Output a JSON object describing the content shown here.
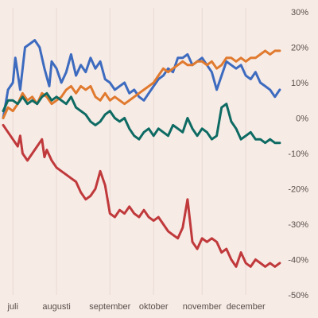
{
  "chart_data": {
    "type": "line",
    "title": "",
    "xlabel": "",
    "ylabel": "",
    "x_ticks": [
      "juli",
      "augusti",
      "september",
      "oktober",
      "november",
      "december"
    ],
    "x_tick_positions": [
      0.3,
      1.2,
      2.3,
      3.2,
      4.2,
      5.1
    ],
    "x_range": [
      0.1,
      5.9
    ],
    "y_ticks": [
      "30%",
      "20%",
      "10%",
      "0%",
      "-10%",
      "-20%",
      "-30%",
      "-40%",
      "-50%"
    ],
    "ylim": [
      -50,
      30
    ],
    "grid": "vertical",
    "legend": "none",
    "series": [
      {
        "color": "#3d6bbf",
        "points": [
          [
            0.1,
            0
          ],
          [
            0.2,
            8
          ],
          [
            0.3,
            10
          ],
          [
            0.35,
            17
          ],
          [
            0.45,
            8
          ],
          [
            0.55,
            20
          ],
          [
            0.65,
            21
          ],
          [
            0.75,
            22
          ],
          [
            0.85,
            20
          ],
          [
            0.95,
            14
          ],
          [
            1.05,
            9
          ],
          [
            1.1,
            16
          ],
          [
            1.2,
            14
          ],
          [
            1.3,
            10
          ],
          [
            1.4,
            13
          ],
          [
            1.5,
            18
          ],
          [
            1.6,
            12
          ],
          [
            1.7,
            15
          ],
          [
            1.8,
            13
          ],
          [
            1.9,
            17
          ],
          [
            2.0,
            14
          ],
          [
            2.1,
            16
          ],
          [
            2.2,
            11
          ],
          [
            2.3,
            10
          ],
          [
            2.4,
            8
          ],
          [
            2.5,
            9
          ],
          [
            2.6,
            10
          ],
          [
            2.7,
            7
          ],
          [
            2.8,
            8
          ],
          [
            2.9,
            6
          ],
          [
            3.0,
            5
          ],
          [
            3.1,
            7
          ],
          [
            3.2,
            9
          ],
          [
            3.3,
            11
          ],
          [
            3.4,
            12
          ],
          [
            3.5,
            14
          ],
          [
            3.6,
            13
          ],
          [
            3.7,
            17
          ],
          [
            3.8,
            17
          ],
          [
            3.9,
            18
          ],
          [
            4.0,
            15
          ],
          [
            4.1,
            16
          ],
          [
            4.2,
            17
          ],
          [
            4.3,
            15
          ],
          [
            4.4,
            13
          ],
          [
            4.5,
            8
          ],
          [
            4.6,
            12
          ],
          [
            4.7,
            16
          ],
          [
            4.8,
            15
          ],
          [
            4.9,
            14
          ],
          [
            5.0,
            15
          ],
          [
            5.1,
            12
          ],
          [
            5.2,
            11
          ],
          [
            5.3,
            13
          ],
          [
            5.4,
            10
          ],
          [
            5.5,
            9
          ],
          [
            5.6,
            8
          ],
          [
            5.7,
            6
          ],
          [
            5.8,
            8
          ]
        ]
      },
      {
        "color": "#e07a2e",
        "points": [
          [
            0.1,
            0
          ],
          [
            0.2,
            3
          ],
          [
            0.3,
            2
          ],
          [
            0.4,
            4
          ],
          [
            0.5,
            7
          ],
          [
            0.6,
            5
          ],
          [
            0.7,
            6
          ],
          [
            0.8,
            4
          ],
          [
            0.9,
            7
          ],
          [
            1.0,
            6
          ],
          [
            1.1,
            4
          ],
          [
            1.2,
            5
          ],
          [
            1.3,
            6
          ],
          [
            1.4,
            8
          ],
          [
            1.5,
            9
          ],
          [
            1.6,
            7
          ],
          [
            1.7,
            9
          ],
          [
            1.8,
            8
          ],
          [
            1.9,
            9
          ],
          [
            2.0,
            6
          ],
          [
            2.1,
            5
          ],
          [
            2.2,
            7
          ],
          [
            2.3,
            5
          ],
          [
            2.4,
            6
          ],
          [
            2.5,
            5
          ],
          [
            2.6,
            4
          ],
          [
            2.7,
            5
          ],
          [
            2.8,
            6
          ],
          [
            2.9,
            7
          ],
          [
            3.0,
            8
          ],
          [
            3.1,
            9
          ],
          [
            3.2,
            10
          ],
          [
            3.3,
            12
          ],
          [
            3.4,
            14
          ],
          [
            3.5,
            13
          ],
          [
            3.6,
            14
          ],
          [
            3.7,
            15
          ],
          [
            3.8,
            16
          ],
          [
            3.9,
            15
          ],
          [
            4.0,
            15
          ],
          [
            4.1,
            16
          ],
          [
            4.2,
            16
          ],
          [
            4.3,
            15
          ],
          [
            4.4,
            16
          ],
          [
            4.5,
            14
          ],
          [
            4.6,
            15
          ],
          [
            4.7,
            17
          ],
          [
            4.8,
            17
          ],
          [
            4.9,
            16
          ],
          [
            5.0,
            17
          ],
          [
            5.1,
            16
          ],
          [
            5.2,
            17
          ],
          [
            5.3,
            17
          ],
          [
            5.4,
            18
          ],
          [
            5.5,
            19
          ],
          [
            5.6,
            18
          ],
          [
            5.7,
            19
          ],
          [
            5.8,
            19
          ]
        ]
      },
      {
        "color": "#0e6b63",
        "points": [
          [
            0.1,
            2
          ],
          [
            0.2,
            5
          ],
          [
            0.3,
            5
          ],
          [
            0.4,
            4
          ],
          [
            0.5,
            6
          ],
          [
            0.6,
            4
          ],
          [
            0.7,
            5
          ],
          [
            0.8,
            4
          ],
          [
            0.9,
            6
          ],
          [
            1.0,
            7
          ],
          [
            1.1,
            5
          ],
          [
            1.2,
            6
          ],
          [
            1.3,
            5
          ],
          [
            1.4,
            4
          ],
          [
            1.5,
            6
          ],
          [
            1.6,
            3
          ],
          [
            1.7,
            2
          ],
          [
            1.8,
            1
          ],
          [
            1.9,
            -1
          ],
          [
            2.0,
            -2
          ],
          [
            2.1,
            -1
          ],
          [
            2.2,
            1
          ],
          [
            2.3,
            2
          ],
          [
            2.4,
            0
          ],
          [
            2.5,
            -1
          ],
          [
            2.6,
            0
          ],
          [
            2.7,
            -3
          ],
          [
            2.8,
            -5
          ],
          [
            2.9,
            -6
          ],
          [
            3.0,
            -4
          ],
          [
            3.1,
            -3
          ],
          [
            3.2,
            -5
          ],
          [
            3.3,
            -3
          ],
          [
            3.4,
            -4
          ],
          [
            3.5,
            -5
          ],
          [
            3.6,
            -2
          ],
          [
            3.7,
            -3
          ],
          [
            3.8,
            -4
          ],
          [
            3.9,
            0
          ],
          [
            4.0,
            -3
          ],
          [
            4.1,
            -5
          ],
          [
            4.2,
            -3
          ],
          [
            4.3,
            -4
          ],
          [
            4.4,
            -6
          ],
          [
            4.5,
            -5
          ],
          [
            4.6,
            3
          ],
          [
            4.7,
            4
          ],
          [
            4.8,
            -1
          ],
          [
            4.9,
            -3
          ],
          [
            5.0,
            -6
          ],
          [
            5.1,
            -5
          ],
          [
            5.2,
            -4
          ],
          [
            5.3,
            -6
          ],
          [
            5.4,
            -6
          ],
          [
            5.5,
            -7
          ],
          [
            5.6,
            -6
          ],
          [
            5.7,
            -7
          ],
          [
            5.8,
            -7
          ]
        ]
      },
      {
        "color": "#c0393b",
        "points": [
          [
            0.1,
            -2
          ],
          [
            0.2,
            -4
          ],
          [
            0.3,
            -6
          ],
          [
            0.4,
            -8
          ],
          [
            0.45,
            -5
          ],
          [
            0.5,
            -10
          ],
          [
            0.6,
            -12
          ],
          [
            0.7,
            -10
          ],
          [
            0.8,
            -8
          ],
          [
            0.9,
            -6
          ],
          [
            0.95,
            -11
          ],
          [
            1.0,
            -9
          ],
          [
            1.1,
            -12
          ],
          [
            1.2,
            -14
          ],
          [
            1.3,
            -15
          ],
          [
            1.4,
            -16
          ],
          [
            1.5,
            -17
          ],
          [
            1.6,
            -18
          ],
          [
            1.7,
            -21
          ],
          [
            1.8,
            -23
          ],
          [
            1.9,
            -22
          ],
          [
            2.0,
            -20
          ],
          [
            2.1,
            -15
          ],
          [
            2.2,
            -19
          ],
          [
            2.3,
            -27
          ],
          [
            2.4,
            -28
          ],
          [
            2.5,
            -26
          ],
          [
            2.6,
            -27
          ],
          [
            2.7,
            -25
          ],
          [
            2.8,
            -27
          ],
          [
            2.9,
            -28
          ],
          [
            3.0,
            -26
          ],
          [
            3.1,
            -28
          ],
          [
            3.2,
            -29
          ],
          [
            3.3,
            -28
          ],
          [
            3.4,
            -30
          ],
          [
            3.5,
            -32
          ],
          [
            3.6,
            -33
          ],
          [
            3.7,
            -34
          ],
          [
            3.8,
            -31
          ],
          [
            3.9,
            -23
          ],
          [
            4.0,
            -35
          ],
          [
            4.1,
            -37
          ],
          [
            4.2,
            -34
          ],
          [
            4.3,
            -35
          ],
          [
            4.4,
            -34
          ],
          [
            4.5,
            -35
          ],
          [
            4.6,
            -38
          ],
          [
            4.7,
            -37
          ],
          [
            4.8,
            -40
          ],
          [
            4.9,
            -42
          ],
          [
            5.0,
            -38
          ],
          [
            5.1,
            -41
          ],
          [
            5.2,
            -42
          ],
          [
            5.3,
            -40
          ],
          [
            5.4,
            -41
          ],
          [
            5.5,
            -42
          ],
          [
            5.6,
            -41
          ],
          [
            5.7,
            -42
          ],
          [
            5.8,
            -41
          ]
        ]
      }
    ]
  }
}
